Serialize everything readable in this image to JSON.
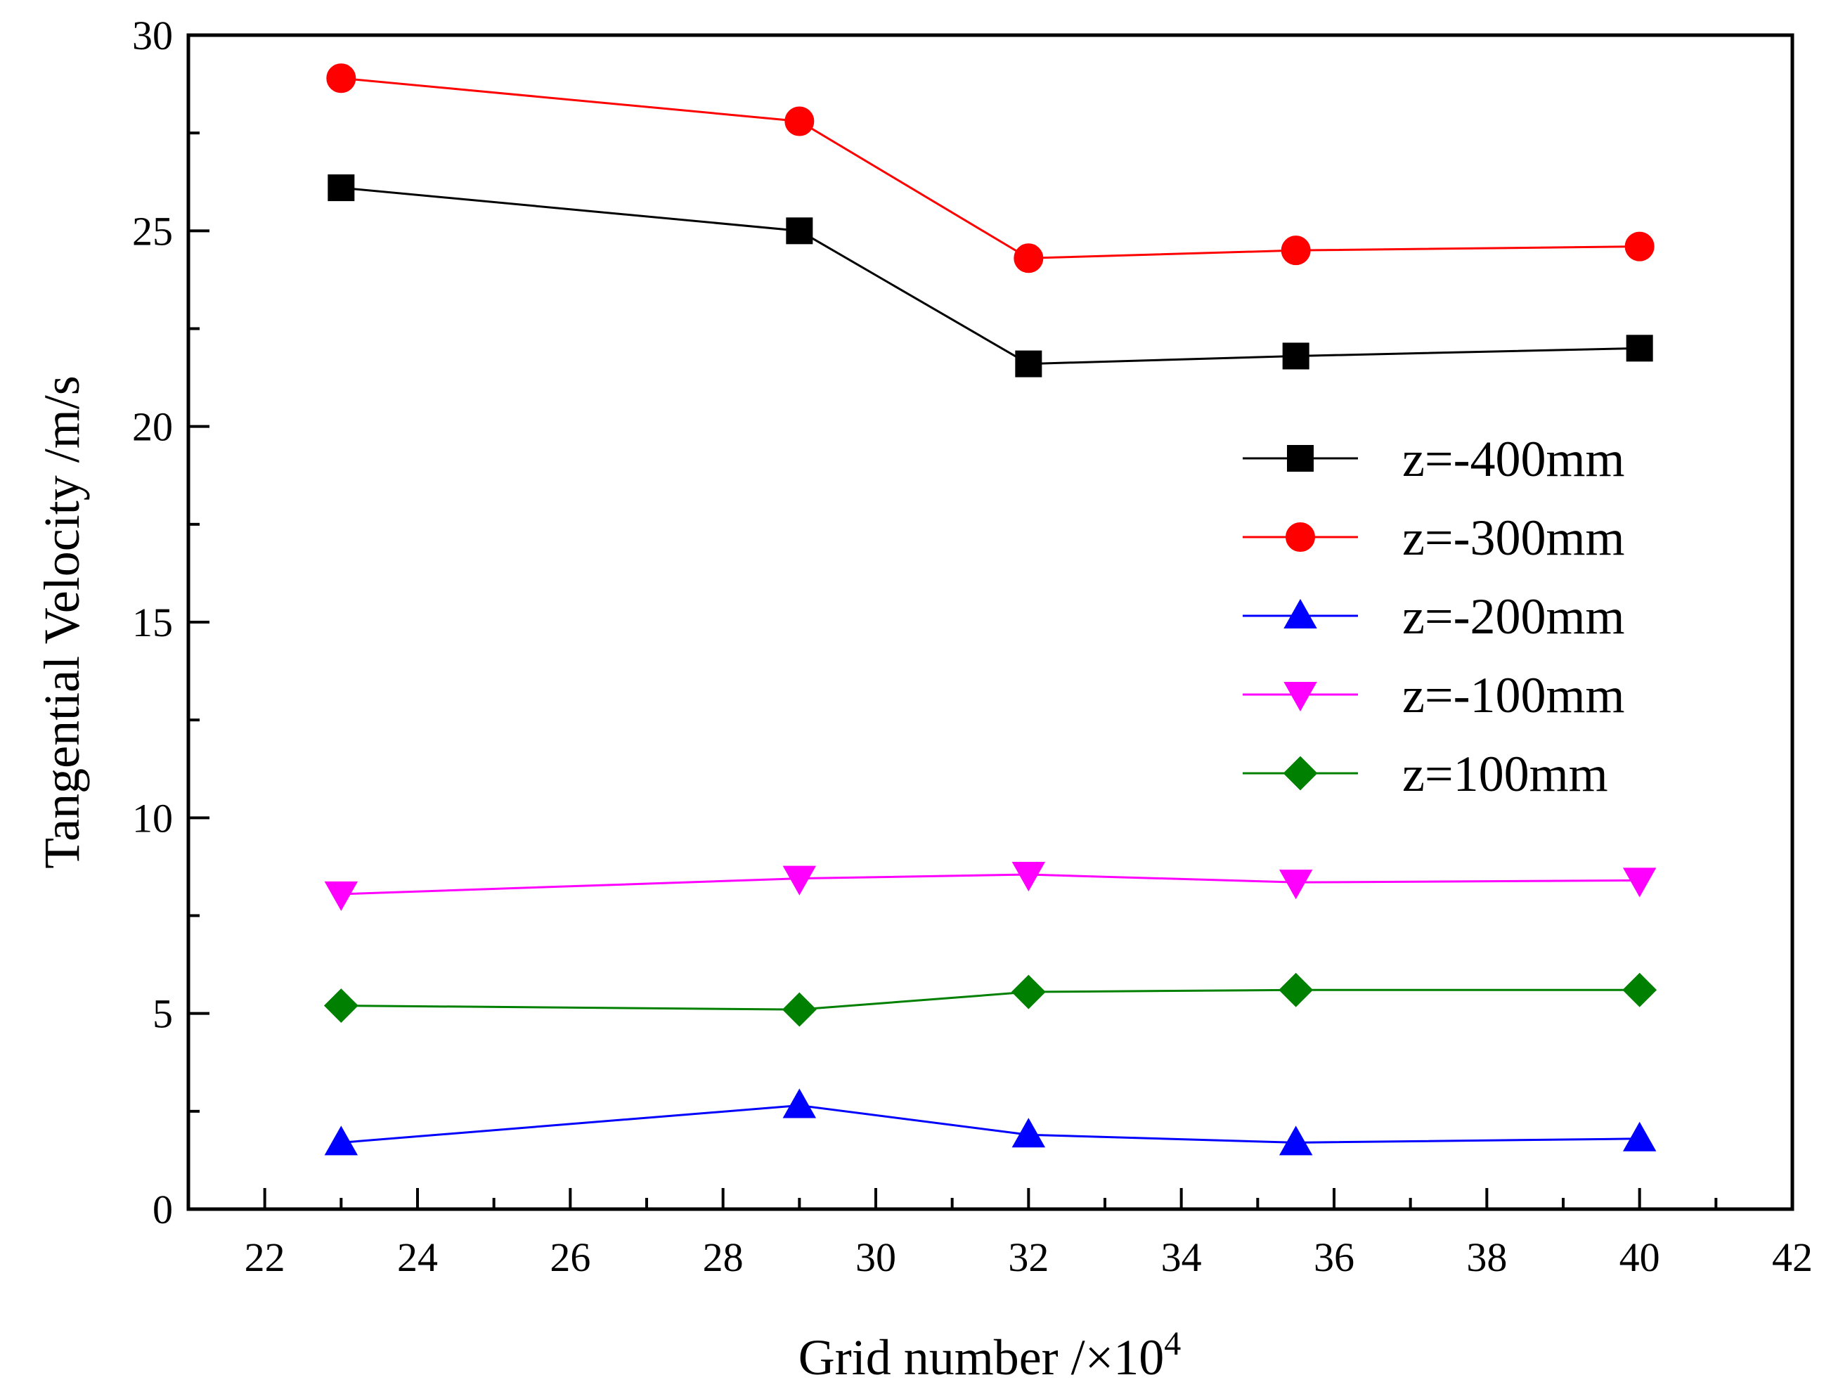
{
  "chart_data": {
    "type": "line",
    "title": "",
    "xlabel": "Grid number /×10",
    "xlabel_exponent": "4",
    "ylabel": "Tangential Velocity /m/s",
    "xlim": [
      21,
      42
    ],
    "ylim": [
      0,
      30
    ],
    "x_ticks": [
      "22",
      "24",
      "26",
      "28",
      "30",
      "32",
      "34",
      "36",
      "38",
      "40",
      "42"
    ],
    "y_ticks": [
      "0",
      "5",
      "10",
      "15",
      "20",
      "25",
      "30"
    ],
    "grid": false,
    "legend_position": "center-right",
    "x": [
      23,
      29,
      32,
      35.5,
      40
    ],
    "series": [
      {
        "name": "z=-400mm",
        "color": "#000000",
        "marker": "square",
        "values": [
          26.1,
          25.0,
          21.6,
          21.8,
          22.0
        ]
      },
      {
        "name": "z=-300mm",
        "color": "#ff0000",
        "marker": "circle",
        "values": [
          28.9,
          27.8,
          24.3,
          24.5,
          24.6
        ]
      },
      {
        "name": "z=-200mm",
        "color": "#0000ff",
        "marker": "triangle-up",
        "values": [
          1.7,
          2.65,
          1.9,
          1.7,
          1.8
        ]
      },
      {
        "name": "z=-100mm",
        "color": "#ff00ff",
        "marker": "triangle-down",
        "values": [
          8.05,
          8.45,
          8.55,
          8.35,
          8.4
        ]
      },
      {
        "name": "z=100mm",
        "color": "#008000",
        "marker": "diamond",
        "values": [
          5.2,
          5.1,
          5.55,
          5.6,
          5.6
        ]
      }
    ]
  }
}
